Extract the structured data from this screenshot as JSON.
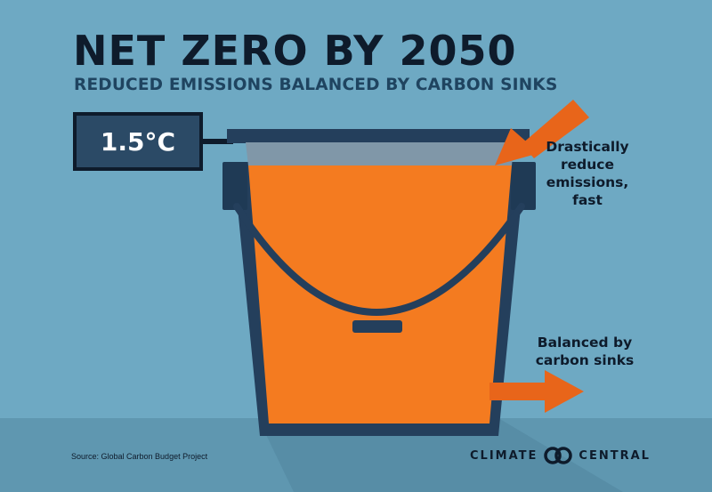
{
  "header": {
    "title": "NET ZERO BY 2050",
    "subtitle": "REDUCED EMISSIONS BALANCED BY CARBON SINKS"
  },
  "gauge": {
    "label": "1.5°C"
  },
  "callouts": {
    "inflow": "Drastically reduce emissions, fast",
    "outflow": "Balanced by carbon sinks"
  },
  "footer": {
    "source": "Source: Global Carbon Budget Project",
    "logo_left": "CLIMATE",
    "logo_right": "CENTRAL"
  },
  "colors": {
    "background": "#6ea9c3",
    "bucket_outline": "#243f5c",
    "fill": "#f47b20",
    "arrow": "#e8651a",
    "label_box": "#2b4a66"
  },
  "icons": {
    "logo_mark": "interlocking-circles-icon"
  }
}
